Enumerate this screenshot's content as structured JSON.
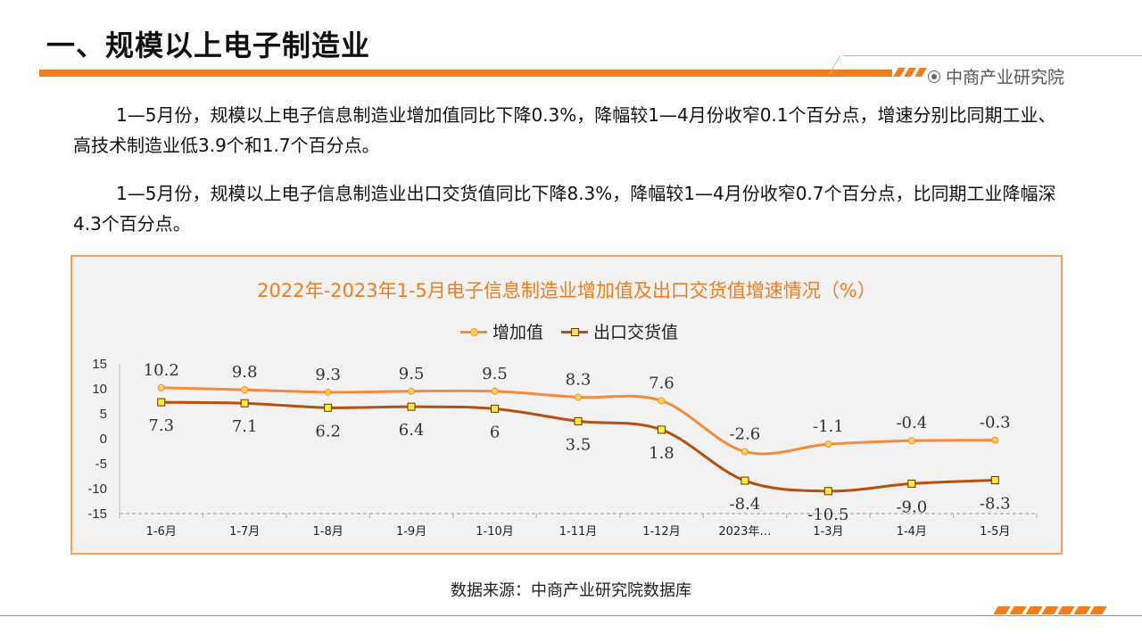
{
  "page": {
    "title": "一、规模以上电子制造业",
    "brand": "中商产业研究院",
    "accent_color": "#f07d1e"
  },
  "paragraphs": [
    "1—5月份，规模以上电子信息制造业增加值同比下降0.3%，降幅较1—4月份收窄0.1个百分点，增速分别比同期工业、高技术制造业低3.9个和1.7个百分点。",
    "1—5月份，规模以上电子信息制造业出口交货值同比下降8.3%，降幅较1—4月份收窄0.7个百分点，比同期工业降幅深4.3个百分点。"
  ],
  "chart_data": {
    "type": "line",
    "title": "2022年-2023年1-5月电子信息制造业增加值及出口交货值增速情况（%）",
    "categories": [
      "1-6月",
      "1-7月",
      "1-8月",
      "1-9月",
      "1-10月",
      "1-11月",
      "1-12月",
      "2023年…",
      "1-3月",
      "1-4月",
      "1-5月"
    ],
    "series": [
      {
        "name": "增加值",
        "values": [
          10.2,
          9.8,
          9.3,
          9.5,
          9.5,
          8.3,
          7.6,
          -2.6,
          -1.1,
          -0.4,
          -0.3
        ],
        "labels": [
          "10.2",
          "9.8",
          "9.3",
          "9.5",
          "9.5",
          "8.3",
          "7.6",
          "-2.6",
          "-1.1",
          "-0.4",
          "-0.3"
        ],
        "color": "#f58a3c",
        "marker": "circle"
      },
      {
        "name": "出口交货值",
        "values": [
          7.3,
          7.1,
          6.2,
          6.4,
          6,
          3.5,
          1.8,
          -8.4,
          -10.5,
          -9.0,
          -8.3
        ],
        "labels": [
          "7.3",
          "7.1",
          "6.2",
          "6.4",
          "6",
          "3.5",
          "1.8",
          "-8.4",
          "-10.5",
          "-9.0",
          "-8.3"
        ],
        "color": "#b5500f",
        "marker": "square"
      }
    ],
    "y_ticks": [
      "15",
      "10",
      "5",
      "0",
      "-5",
      "-10",
      "-15"
    ],
    "ylim": [
      -15,
      15
    ],
    "legend_position": "top",
    "grid": false
  },
  "source": "数据来源：中商产业研究院数据库"
}
